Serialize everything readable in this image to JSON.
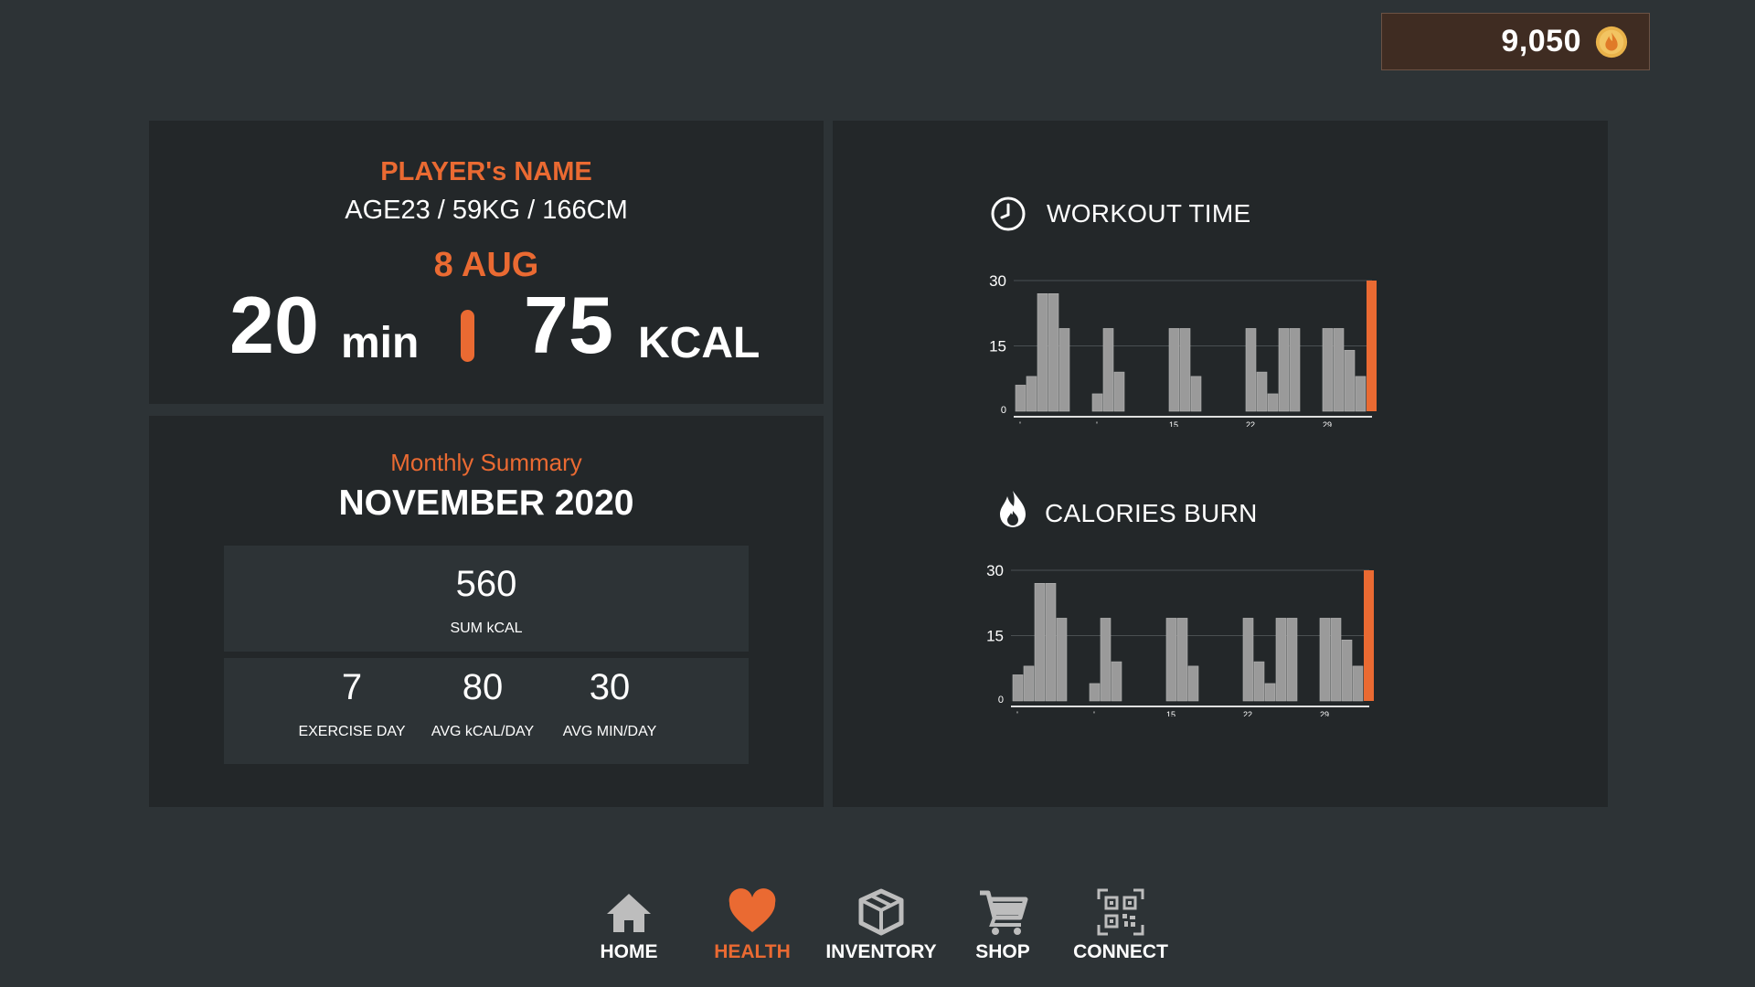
{
  "currency": {
    "amount": "9,050",
    "icon": "flame-coin-icon",
    "color": "#e9b24a"
  },
  "profile": {
    "name": "PLAYER's  NAME",
    "stats": "AGE23 / 59KG / 166CM",
    "date": "8 AUG",
    "minutes": "20",
    "minutes_unit": "min",
    "kcal": "75",
    "kcal_unit": "KCAL"
  },
  "summary": {
    "title": "Monthly Summary",
    "month": "NOVEMBER 2020",
    "sum_kcal": {
      "value": "560",
      "label": "SUM kCAL"
    },
    "stats": [
      {
        "value": "7",
        "label": "EXERCISE DAY"
      },
      {
        "value": "80",
        "label": "AVG kCAL/DAY"
      },
      {
        "value": "30",
        "label": "AVG MIN/DAY"
      }
    ]
  },
  "colors": {
    "accent": "#ea6a32",
    "bar": "#9a9a9a",
    "panel": "#232729",
    "background": "#2d3336"
  },
  "chart_data": [
    {
      "type": "bar",
      "title": "WORKOUT TIME",
      "icon": "clock-icon",
      "ylim": [
        0,
        30
      ],
      "yticks": [
        "0",
        "15",
        "30"
      ],
      "xticks": [
        {
          "day": 1,
          "label": "'"
        },
        {
          "day": 8,
          "label": "'"
        },
        {
          "day": 15,
          "label": "15"
        },
        {
          "day": 22,
          "label": "22"
        },
        {
          "day": 29,
          "label": "29"
        }
      ],
      "grid": true,
      "days": [
        1,
        2,
        3,
        4,
        5,
        8,
        9,
        10,
        15,
        16,
        17,
        22,
        23,
        24,
        25,
        26,
        29,
        30,
        31,
        32,
        33
      ],
      "values": [
        6,
        8,
        27,
        27,
        19,
        4,
        19,
        9,
        19,
        19,
        8,
        19,
        9,
        4,
        19,
        19,
        19,
        19,
        14,
        8,
        30
      ],
      "highlight_index": 20
    },
    {
      "type": "bar",
      "title": "CALORIES BURN",
      "icon": "flame-icon",
      "ylim": [
        0,
        30
      ],
      "yticks": [
        "0",
        "15",
        "30"
      ],
      "xticks": [
        {
          "day": 1,
          "label": "'"
        },
        {
          "day": 8,
          "label": "'"
        },
        {
          "day": 15,
          "label": "15"
        },
        {
          "day": 22,
          "label": "22"
        },
        {
          "day": 29,
          "label": "29"
        }
      ],
      "grid": true,
      "days": [
        1,
        2,
        3,
        4,
        5,
        8,
        9,
        10,
        15,
        16,
        17,
        22,
        23,
        24,
        25,
        26,
        29,
        30,
        31,
        32,
        33
      ],
      "values": [
        6,
        8,
        27,
        27,
        19,
        4,
        19,
        9,
        19,
        19,
        8,
        19,
        9,
        4,
        19,
        19,
        19,
        19,
        14,
        8,
        30
      ],
      "highlight_index": 20
    }
  ],
  "nav": {
    "items": [
      {
        "label": "HOME",
        "icon": "home-icon",
        "active": false
      },
      {
        "label": "HEALTH",
        "icon": "heart-icon",
        "active": true
      },
      {
        "label": "INVENTORY",
        "icon": "box-icon",
        "active": false
      },
      {
        "label": "SHOP",
        "icon": "cart-icon",
        "active": false
      },
      {
        "label": "CONNECT",
        "icon": "qr-code-icon",
        "active": false
      }
    ]
  }
}
